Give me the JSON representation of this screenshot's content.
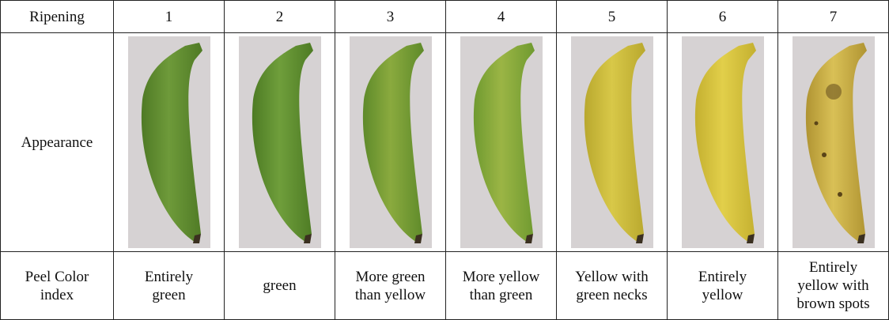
{
  "table": {
    "header": [
      "Ripening",
      "1",
      "2",
      "3",
      "4",
      "5",
      "6",
      "7"
    ],
    "appearance_label": "Appearance",
    "peel_label": [
      "Peel Color",
      "index"
    ],
    "peel_color_index": [
      [
        "Entirely",
        "green"
      ],
      [
        "green"
      ],
      [
        "More green",
        "than yellow"
      ],
      [
        "More yellow",
        "than green"
      ],
      [
        "Yellow with",
        "green necks"
      ],
      [
        "Entirely",
        "yellow"
      ],
      [
        "Entirely",
        "yellow with",
        "brown spots"
      ]
    ]
  }
}
